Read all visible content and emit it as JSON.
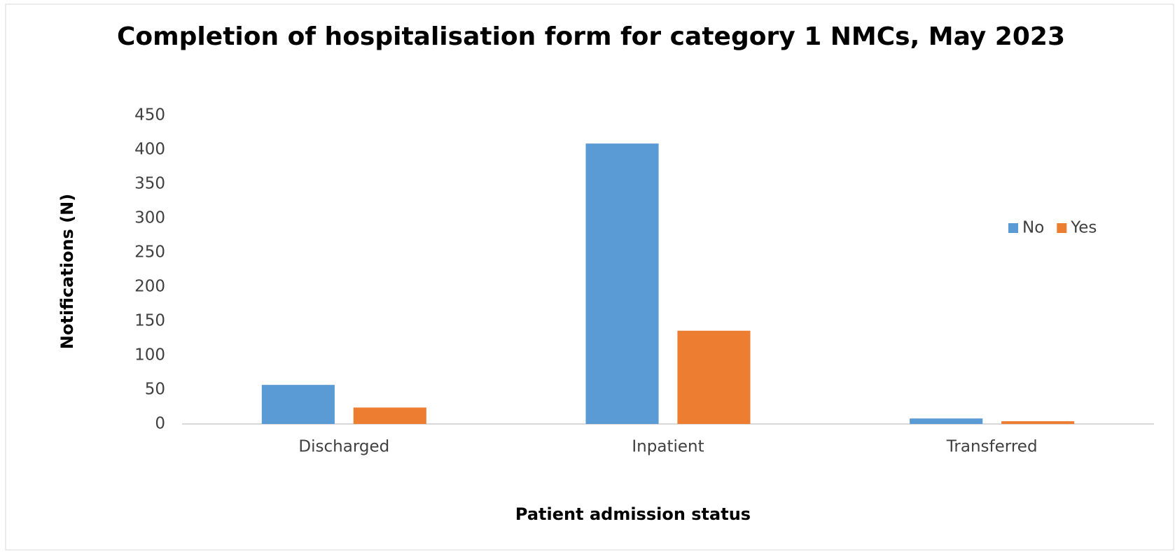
{
  "chart_data": {
    "type": "bar",
    "title": "Completion of hospitalisation form for category 1 NMCs, May 2023",
    "x_label": "Patient admission status",
    "y_label": "Notifications (N)",
    "categories": [
      "Discharged",
      "Inpatient",
      "Transferred"
    ],
    "series": [
      {
        "name": "No",
        "color": "#5b9bd5",
        "values": [
          57,
          409,
          8
        ]
      },
      {
        "name": "Yes",
        "color": "#ed7d31",
        "values": [
          24,
          136,
          4
        ]
      }
    ],
    "ylim": [
      0,
      450
    ],
    "yticks": [
      0,
      50,
      100,
      150,
      200,
      250,
      300,
      350,
      400,
      450
    ],
    "grid": false,
    "legend": "right"
  }
}
